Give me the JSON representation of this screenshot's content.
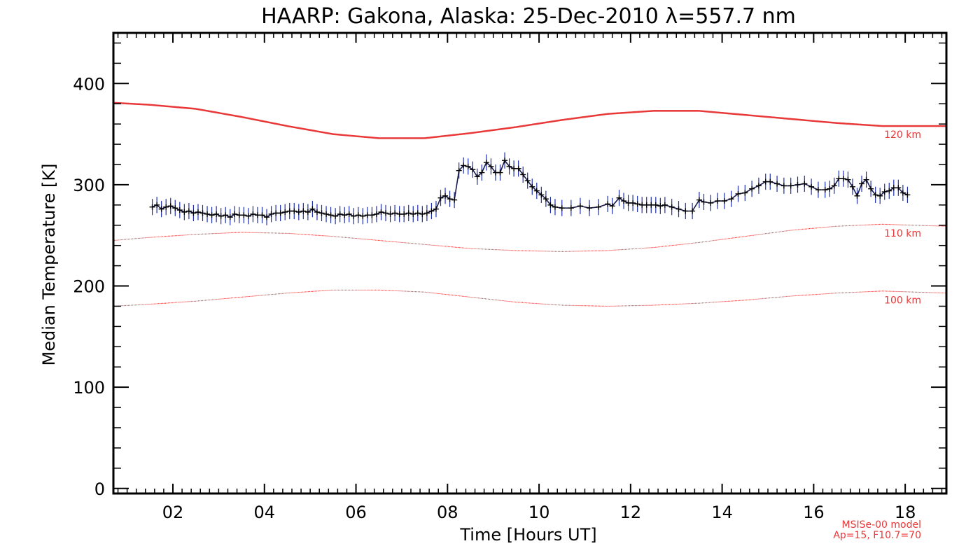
{
  "chart_data": {
    "type": "line",
    "title": "HAARP: Gakona,  Alaska: 25-Dec-2010 λ=557.7 nm",
    "xlabel": "Time [Hours UT]",
    "ylabel": "Median Temperature [K]",
    "xlim": [
      0.7,
      18.9
    ],
    "ylim": [
      -5,
      450
    ],
    "grid": false,
    "x_ticks": [
      2,
      4,
      6,
      8,
      10,
      12,
      14,
      16,
      18
    ],
    "x_tick_labels": [
      "02",
      "04",
      "06",
      "08",
      "10",
      "12",
      "14",
      "16",
      "18"
    ],
    "y_ticks": [
      0,
      100,
      200,
      300,
      400
    ],
    "y_tick_labels": [
      "0",
      "100",
      "200",
      "300",
      "400"
    ],
    "model_note": [
      "MSISe-00 model",
      "Ap=15, F10.7=70"
    ],
    "series": [
      {
        "name": "120 km",
        "style": "model",
        "color": "#e83838",
        "x": [
          0.7,
          1.5,
          2.5,
          3.5,
          4.5,
          5.5,
          6.5,
          7.5,
          8.5,
          9.5,
          10.5,
          11.5,
          12.5,
          13.5,
          14.5,
          15.5,
          16.5,
          17.5,
          18.9
        ],
        "values": [
          381,
          379,
          375,
          367,
          358,
          350,
          346,
          346,
          351,
          357,
          364,
          370,
          373,
          373,
          369,
          365,
          361,
          358,
          358
        ]
      },
      {
        "name": "110 km",
        "style": "model",
        "color": "#e83838",
        "x": [
          0.7,
          1.5,
          2.5,
          3.5,
          4.5,
          5.5,
          6.5,
          7.5,
          8.5,
          9.5,
          10.5,
          11.5,
          12.5,
          13.5,
          14.5,
          15.5,
          16.5,
          17.5,
          18.9
        ],
        "values": [
          245,
          248,
          251,
          253,
          252,
          249,
          245,
          241,
          237,
          235,
          234,
          235,
          238,
          243,
          249,
          255,
          259,
          261,
          259
        ]
      },
      {
        "name": "100 km",
        "style": "model",
        "color": "#e83838",
        "x": [
          0.7,
          1.5,
          2.5,
          3.5,
          4.5,
          5.5,
          6.5,
          7.5,
          8.5,
          9.5,
          10.5,
          11.5,
          12.5,
          13.5,
          14.5,
          15.5,
          16.5,
          17.5,
          18.9
        ],
        "values": [
          180,
          182,
          185,
          189,
          193,
          196,
          196,
          194,
          189,
          184,
          181,
          180,
          181,
          183,
          186,
          190,
          193,
          195,
          193
        ]
      },
      {
        "name": "",
        "style": "data",
        "color": "#1a1a4e",
        "error_color": "#1f2fa8",
        "error": 8,
        "x": [
          1.55,
          1.65,
          1.75,
          1.85,
          1.95,
          2.05,
          2.15,
          2.25,
          2.35,
          2.45,
          2.55,
          2.65,
          2.75,
          2.85,
          2.95,
          3.05,
          3.15,
          3.25,
          3.35,
          3.45,
          3.55,
          3.65,
          3.75,
          3.85,
          3.95,
          4.05,
          4.15,
          4.25,
          4.35,
          4.45,
          4.55,
          4.65,
          4.75,
          4.85,
          4.95,
          5.05,
          5.15,
          5.25,
          5.35,
          5.45,
          5.55,
          5.65,
          5.75,
          5.85,
          5.95,
          6.05,
          6.15,
          6.25,
          6.35,
          6.45,
          6.55,
          6.65,
          6.75,
          6.85,
          6.95,
          7.05,
          7.15,
          7.25,
          7.35,
          7.45,
          7.55,
          7.65,
          7.75,
          7.85,
          7.95,
          8.05,
          8.15,
          8.25,
          8.35,
          8.45,
          8.55,
          8.65,
          8.75,
          8.85,
          8.95,
          9.05,
          9.15,
          9.25,
          9.35,
          9.45,
          9.55,
          9.65,
          9.75,
          9.85,
          9.95,
          10.05,
          10.15,
          10.25,
          10.35,
          10.5,
          10.7,
          10.9,
          11.1,
          11.3,
          11.5,
          11.6,
          11.75,
          11.85,
          11.95,
          12.05,
          12.15,
          12.25,
          12.35,
          12.45,
          12.55,
          12.65,
          12.75,
          12.9,
          13.05,
          13.2,
          13.35,
          13.5,
          13.6,
          13.75,
          13.9,
          14.05,
          14.2,
          14.35,
          14.5,
          14.65,
          14.8,
          14.95,
          15.05,
          15.2,
          15.35,
          15.5,
          15.65,
          15.8,
          15.95,
          16.1,
          16.25,
          16.35,
          16.45,
          16.55,
          16.65,
          16.75,
          16.85,
          16.95,
          17.05,
          17.15,
          17.25,
          17.35,
          17.45,
          17.55,
          17.65,
          17.75,
          17.85,
          17.95,
          18.05
        ],
        "values": [
          278,
          280,
          276,
          278,
          279,
          277,
          275,
          273,
          274,
          272,
          273,
          272,
          271,
          270,
          271,
          269,
          270,
          268,
          271,
          270,
          270,
          269,
          271,
          270,
          270,
          268,
          271,
          272,
          272,
          273,
          274,
          274,
          273,
          274,
          273,
          276,
          273,
          272,
          271,
          270,
          269,
          271,
          270,
          271,
          269,
          270,
          269,
          270,
          270,
          271,
          273,
          272,
          271,
          272,
          271,
          271,
          272,
          271,
          272,
          271,
          272,
          274,
          276,
          287,
          289,
          286,
          285,
          314,
          319,
          318,
          315,
          308,
          312,
          322,
          318,
          312,
          312,
          324,
          318,
          316,
          316,
          310,
          304,
          298,
          294,
          290,
          286,
          280,
          278,
          277,
          277,
          279,
          277,
          278,
          281,
          279,
          287,
          284,
          282,
          282,
          281,
          280,
          280,
          280,
          280,
          279,
          280,
          278,
          276,
          274,
          274,
          285,
          283,
          282,
          284,
          284,
          286,
          291,
          292,
          296,
          299,
          303,
          303,
          301,
          299,
          299,
          300,
          301,
          298,
          295,
          295,
          296,
          299,
          306,
          306,
          305,
          298,
          289,
          301,
          305,
          296,
          290,
          289,
          293,
          294,
          297,
          297,
          292,
          290
        ]
      }
    ]
  }
}
